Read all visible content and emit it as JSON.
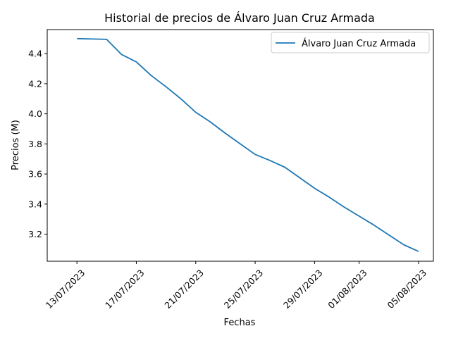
{
  "chart_data": {
    "type": "line",
    "title": "Historial de precios de Álvaro Juan Cruz Armada",
    "xlabel": "Fechas",
    "ylabel": "Precios (M)",
    "x_ticks": [
      "13/07/2023",
      "17/07/2023",
      "21/07/2023",
      "25/07/2023",
      "29/07/2023",
      "01/08/2023",
      "05/08/2023"
    ],
    "y_ticks": [
      "3.2",
      "3.4",
      "3.6",
      "3.8",
      "4.0",
      "4.2",
      "4.4"
    ],
    "ylim": [
      3.02,
      4.56
    ],
    "xlim": [
      "11/07/2023",
      "06/08/2023"
    ],
    "legend_position": "top-right",
    "color": "#1f77b4",
    "grid": false,
    "series": [
      {
        "name": "Álvaro Juan Cruz Armada",
        "x": [
          "13/07/2023",
          "15/07/2023",
          "16/07/2023",
          "17/07/2023",
          "18/07/2023",
          "19/07/2023",
          "20/07/2023",
          "21/07/2023",
          "22/07/2023",
          "23/07/2023",
          "24/07/2023",
          "25/07/2023",
          "26/07/2023",
          "27/07/2023",
          "28/07/2023",
          "29/07/2023",
          "30/07/2023",
          "31/07/2023",
          "01/08/2023",
          "02/08/2023",
          "03/08/2023",
          "04/08/2023",
          "05/08/2023"
        ],
        "values": [
          4.5,
          4.495,
          4.395,
          4.345,
          4.255,
          4.18,
          4.1,
          4.01,
          3.945,
          3.87,
          3.8,
          3.73,
          3.69,
          3.645,
          3.575,
          3.505,
          3.445,
          3.38,
          3.32,
          3.26,
          3.195,
          3.13,
          3.085
        ]
      }
    ]
  }
}
